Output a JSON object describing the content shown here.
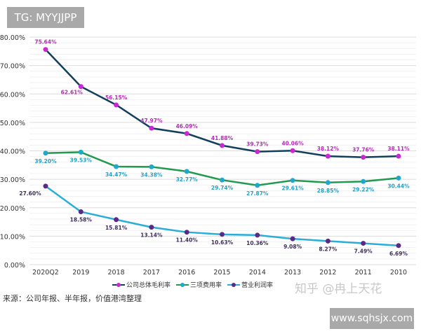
{
  "watermarks": {
    "top_left": "TG: MYYJJPP",
    "bottom_right": "www.sqhsjx.com",
    "zhihu": "知乎 @冉上天花"
  },
  "source_note": "来源：公司年报、半年报，价值港湾整理",
  "chart_data": {
    "type": "line",
    "categories": [
      "2020Q2",
      "2019",
      "2018",
      "2017",
      "2016",
      "2015",
      "2014",
      "2013",
      "2012",
      "2011",
      "2010"
    ],
    "ylim": [
      0,
      80
    ],
    "yticks": [
      "0.00%",
      "10.00%",
      "20.00%",
      "30.00%",
      "40.00%",
      "50.00%",
      "60.00%",
      "70.00%",
      "80.00%"
    ],
    "grid": true,
    "legend_placement": "bottom",
    "series": [
      {
        "name": "公司总体毛利率",
        "line_color": "#123f5c",
        "marker_color": "#c62ad0",
        "label_color": "#b62ab8",
        "values": [
          75.64,
          62.61,
          56.15,
          47.97,
          46.09,
          41.88,
          39.73,
          40.06,
          38.12,
          37.76,
          38.11
        ]
      },
      {
        "name": "三项费用率",
        "line_color": "#1f9a4e",
        "marker_color": "#1fa8c9",
        "label_color": "#2a9fc0",
        "values": [
          39.2,
          39.53,
          34.47,
          34.38,
          32.77,
          29.74,
          27.87,
          29.61,
          28.85,
          29.22,
          30.44
        ]
      },
      {
        "name": "营业利润率",
        "line_color": "#2aaed8",
        "marker_color": "#5b2a86",
        "label_color": "#3d2f5a",
        "values": [
          27.6,
          18.58,
          15.81,
          13.14,
          11.4,
          10.63,
          10.36,
          9.08,
          8.27,
          7.49,
          6.69
        ]
      }
    ]
  }
}
